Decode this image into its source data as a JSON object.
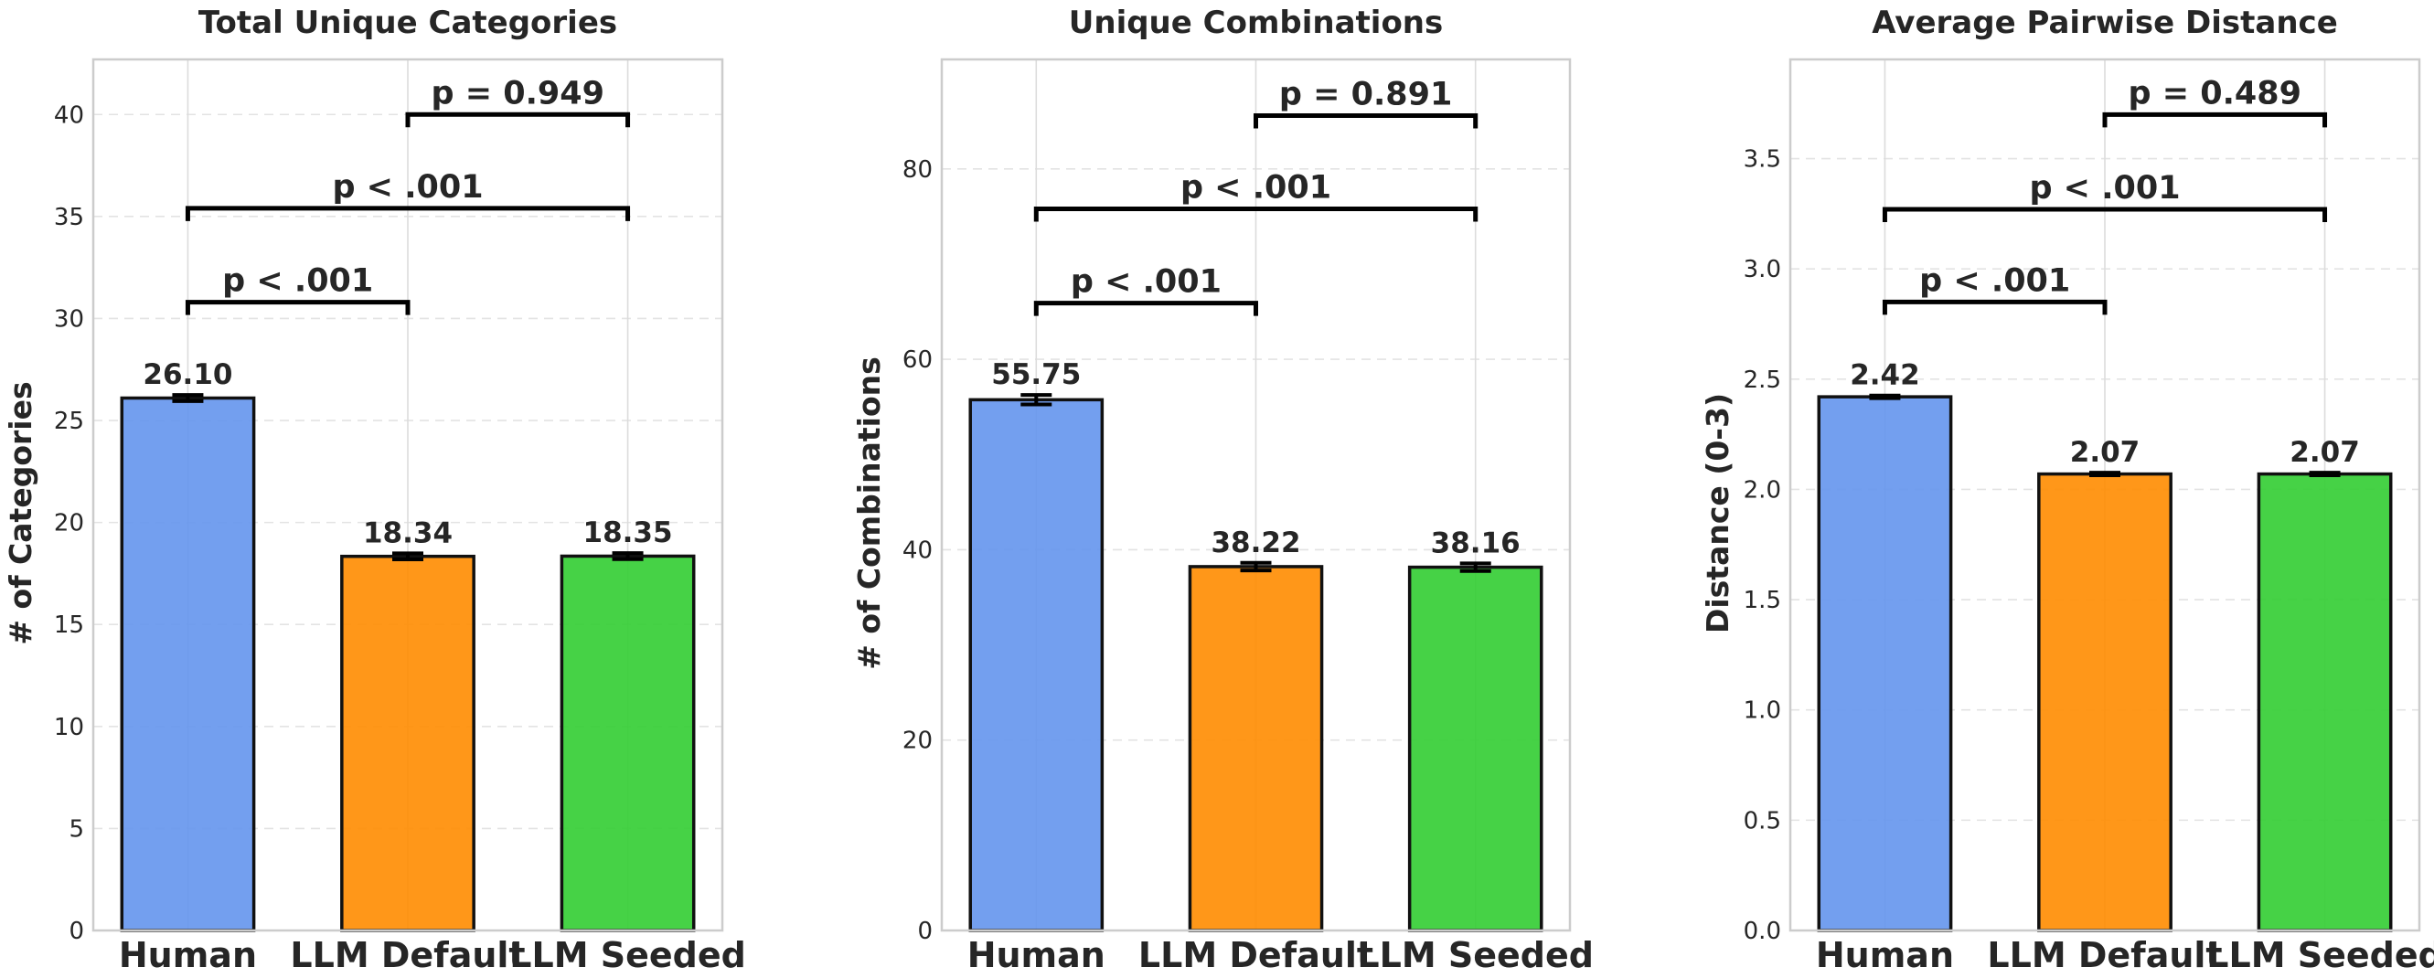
{
  "chart_data": [
    {
      "type": "bar",
      "title": "Total Unique Categories",
      "ylabel": "# of Categories",
      "xlabel": "",
      "categories": [
        "Human",
        "LLM Default",
        "LLM Seeded"
      ],
      "values": [
        26.1,
        18.34,
        18.35
      ],
      "errors": [
        0.15,
        0.15,
        0.15
      ],
      "value_labels": [
        "26.10",
        "18.34",
        "18.35"
      ],
      "ylim": [
        0,
        42.7
      ],
      "yticks": [
        0,
        5,
        10,
        15,
        20,
        25,
        30,
        35,
        40
      ],
      "ytick_labels": [
        "0",
        "5",
        "10",
        "15",
        "20",
        "25",
        "30",
        "35",
        "40"
      ],
      "grid": true,
      "comparisons": [
        {
          "from": 0,
          "to": 1,
          "y": 30.8,
          "label": "p < .001"
        },
        {
          "from": 0,
          "to": 2,
          "y": 35.4,
          "label": "p < .001"
        },
        {
          "from": 1,
          "to": 2,
          "y": 40.0,
          "label": "p = 0.949"
        }
      ]
    },
    {
      "type": "bar",
      "title": "Unique Combinations",
      "ylabel": "# of Combinations",
      "xlabel": "",
      "categories": [
        "Human",
        "LLM Default",
        "LLM Seeded"
      ],
      "values": [
        55.75,
        38.22,
        38.16
      ],
      "errors": [
        0.5,
        0.4,
        0.4
      ],
      "value_labels": [
        "55.75",
        "38.22",
        "38.16"
      ],
      "ylim": [
        0,
        91.5
      ],
      "yticks": [
        0,
        20,
        40,
        60,
        80
      ],
      "ytick_labels": [
        "0",
        "20",
        "40",
        "60",
        "80"
      ],
      "grid": true,
      "comparisons": [
        {
          "from": 0,
          "to": 1,
          "y": 65.9,
          "label": "p < .001"
        },
        {
          "from": 0,
          "to": 2,
          "y": 75.8,
          "label": "p < .001"
        },
        {
          "from": 1,
          "to": 2,
          "y": 85.6,
          "label": "p = 0.891"
        }
      ]
    },
    {
      "type": "bar",
      "title": "Average Pairwise Distance",
      "ylabel": "Distance (0-3)",
      "xlabel": "",
      "categories": [
        "Human",
        "LLM Default",
        "LLM Seeded"
      ],
      "values": [
        2.42,
        2.07,
        2.07
      ],
      "errors": [
        0.006,
        0.006,
        0.006
      ],
      "value_labels": [
        "2.42",
        "2.07",
        "2.07"
      ],
      "ylim": [
        0,
        3.95
      ],
      "yticks": [
        0,
        0.5,
        1.0,
        1.5,
        2.0,
        2.5,
        3.0,
        3.5
      ],
      "ytick_labels": [
        "0.0",
        "0.5",
        "1.0",
        "1.5",
        "2.0",
        "2.5",
        "3.0",
        "3.5"
      ],
      "grid": true,
      "comparisons": [
        {
          "from": 0,
          "to": 1,
          "y": 2.85,
          "label": "p < .001"
        },
        {
          "from": 0,
          "to": 2,
          "y": 3.27,
          "label": "p < .001"
        },
        {
          "from": 1,
          "to": 2,
          "y": 3.7,
          "label": "p = 0.489"
        }
      ]
    }
  ],
  "colors": {
    "bars": [
      "#6495ED",
      "#FF8C00",
      "#32CD32"
    ],
    "bar_edge": "#111111",
    "text": "#262626"
  }
}
